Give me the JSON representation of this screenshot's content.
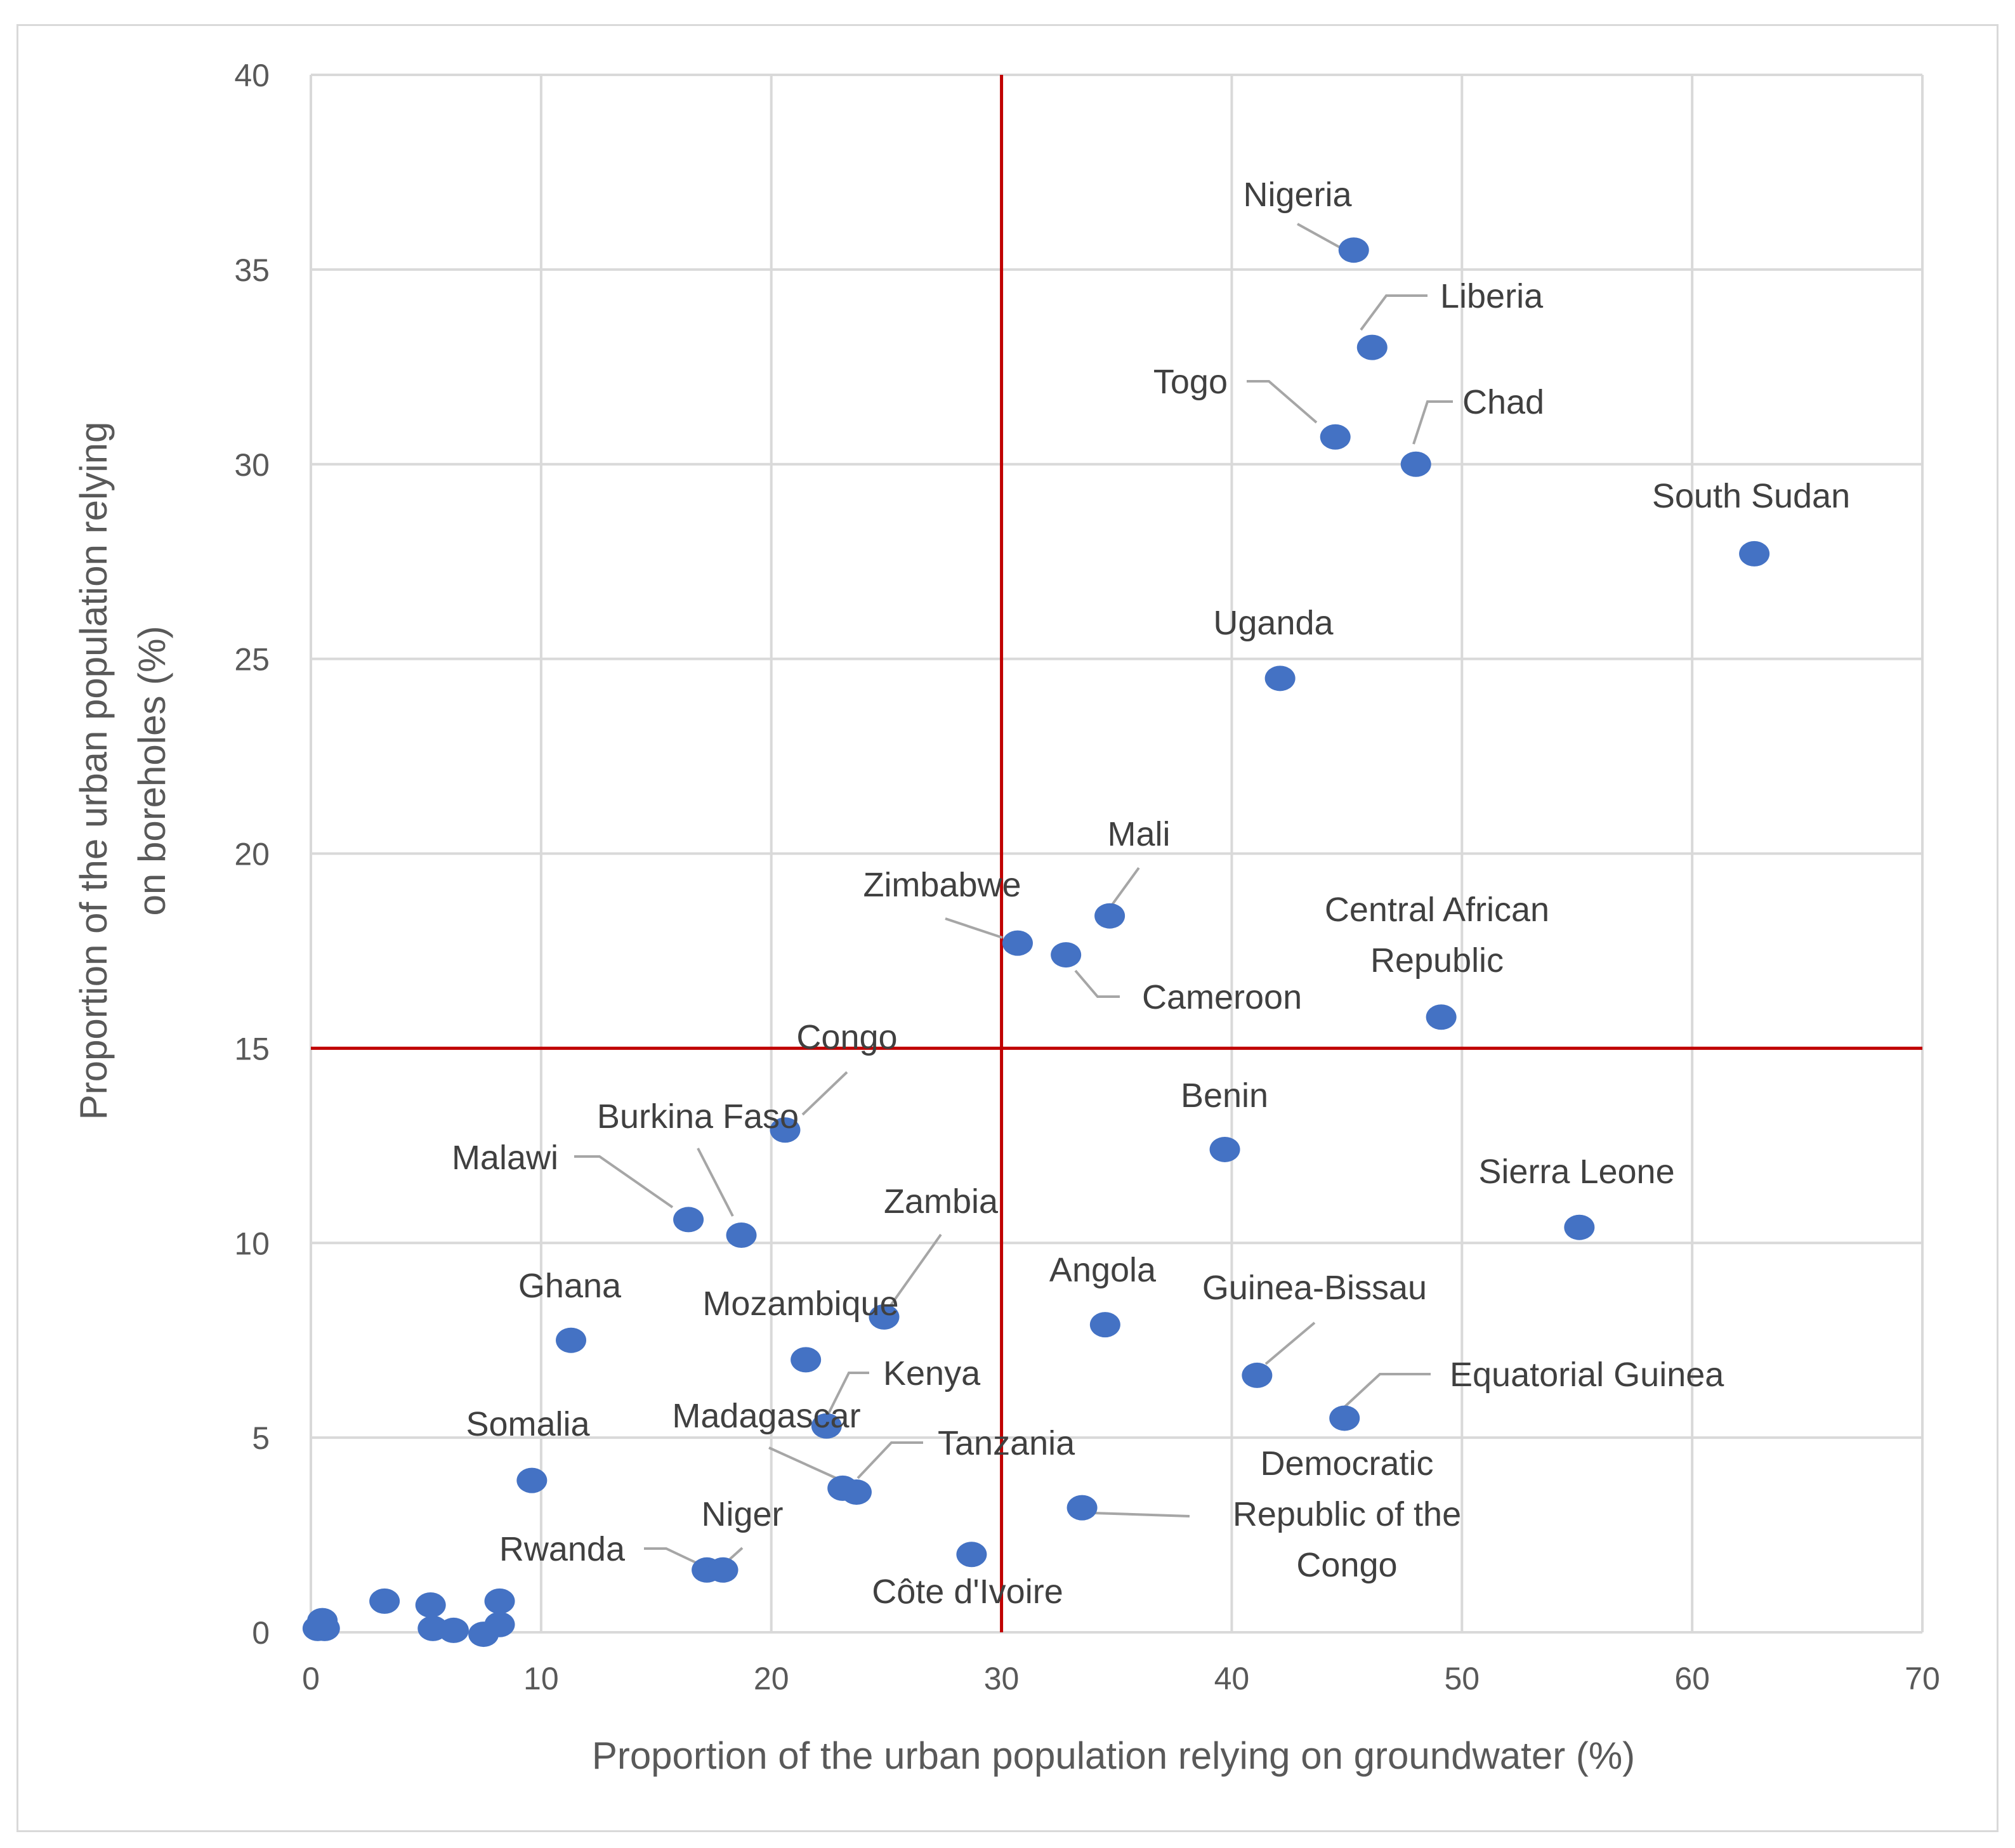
{
  "chart_data": {
    "type": "scatter",
    "title": "",
    "xlabel": "Proportion of the urban population relying on groundwater (%)",
    "ylabel_lines": [
      "Proportion of the urban population relying",
      "on boreholes (%)"
    ],
    "xlim": [
      0,
      70
    ],
    "ylim": [
      0,
      40
    ],
    "x_ticks": [
      0,
      10,
      20,
      30,
      40,
      50,
      60,
      70
    ],
    "y_ticks": [
      0,
      5,
      10,
      15,
      20,
      25,
      30,
      35,
      40
    ],
    "grid": true,
    "reference_lines": {
      "x": 30,
      "y": 15,
      "color": "#c00000"
    },
    "marker_color": "#4472c4",
    "points": [
      {
        "name": "Nigeria",
        "x": 45.3,
        "y": 35.5
      },
      {
        "name": "Liberia",
        "x": 46.1,
        "y": 33.0
      },
      {
        "name": "Togo",
        "x": 44.5,
        "y": 30.7
      },
      {
        "name": "Chad",
        "x": 48.0,
        "y": 30.0
      },
      {
        "name": "South Sudan",
        "x": 62.7,
        "y": 27.7
      },
      {
        "name": "Uganda",
        "x": 42.1,
        "y": 24.5
      },
      {
        "name": "Mali",
        "x": 34.7,
        "y": 18.4
      },
      {
        "name": "Zimbabwe",
        "x": 30.7,
        "y": 17.7
      },
      {
        "name": "Cameroon",
        "x": 32.8,
        "y": 17.4
      },
      {
        "name": "Central African Republic",
        "x": 49.1,
        "y": 15.8
      },
      {
        "name": "Congo",
        "x": 20.6,
        "y": 12.9
      },
      {
        "name": "Benin",
        "x": 39.7,
        "y": 12.4
      },
      {
        "name": "Burkina Faso",
        "x": 18.7,
        "y": 10.2
      },
      {
        "name": "Malawi",
        "x": 16.4,
        "y": 10.6
      },
      {
        "name": "Sierra Leone",
        "x": 55.1,
        "y": 10.4
      },
      {
        "name": "Zambia",
        "x": 24.9,
        "y": 8.1
      },
      {
        "name": "Angola",
        "x": 34.5,
        "y": 7.9
      },
      {
        "name": "Ghana",
        "x": 11.3,
        "y": 7.5
      },
      {
        "name": "Mozambique",
        "x": 21.5,
        "y": 7.0
      },
      {
        "name": "Guinea-Bissau",
        "x": 41.1,
        "y": 6.6
      },
      {
        "name": "Equatorial Guinea",
        "x": 44.9,
        "y": 5.5
      },
      {
        "name": "Kenya",
        "x": 22.4,
        "y": 5.3
      },
      {
        "name": "Madagascar",
        "x": 23.1,
        "y": 3.7
      },
      {
        "name": "Tanzania",
        "x": 23.7,
        "y": 3.6
      },
      {
        "name": "Somalia",
        "x": 9.6,
        "y": 3.9
      },
      {
        "name": "Democratic Republic of the Congo",
        "x": 33.5,
        "y": 3.2
      },
      {
        "name": "Côte d'Ivoire",
        "x": 28.7,
        "y": 2.0
      },
      {
        "name": "Rwanda",
        "x": 17.2,
        "y": 1.6
      },
      {
        "name": "Niger",
        "x": 17.9,
        "y": 1.6
      },
      {
        "name": "",
        "x": 3.2,
        "y": 0.8
      },
      {
        "name": "",
        "x": 5.2,
        "y": 0.7
      },
      {
        "name": "",
        "x": 8.2,
        "y": 0.8
      },
      {
        "name": "",
        "x": 0.5,
        "y": 0.3
      },
      {
        "name": "",
        "x": 0.6,
        "y": 0.1
      },
      {
        "name": "",
        "x": 0.3,
        "y": 0.1
      },
      {
        "name": "",
        "x": 5.3,
        "y": 0.1
      },
      {
        "name": "",
        "x": 6.2,
        "y": 0.05
      },
      {
        "name": "",
        "x": 7.5,
        "y": -0.05
      },
      {
        "name": "",
        "x": 8.2,
        "y": 0.2
      }
    ],
    "labels": [
      {
        "point": "Nigeria",
        "lines": [
          "Nigeria"
        ]
      },
      {
        "point": "Liberia",
        "lines": [
          "Liberia"
        ]
      },
      {
        "point": "Togo",
        "lines": [
          "Togo"
        ]
      },
      {
        "point": "Chad",
        "lines": [
          "Chad"
        ]
      },
      {
        "point": "South Sudan",
        "lines": [
          "South Sudan"
        ]
      },
      {
        "point": "Uganda",
        "lines": [
          "Uganda"
        ]
      },
      {
        "point": "Mali",
        "lines": [
          "Mali"
        ]
      },
      {
        "point": "Zimbabwe",
        "lines": [
          "Zimbabwe"
        ]
      },
      {
        "point": "Cameroon",
        "lines": [
          "Cameroon"
        ]
      },
      {
        "point": "Central African Republic",
        "lines": [
          "Central African",
          "Republic"
        ]
      },
      {
        "point": "Congo",
        "lines": [
          "Congo"
        ]
      },
      {
        "point": "Benin",
        "lines": [
          "Benin"
        ]
      },
      {
        "point": "Burkina Faso",
        "lines": [
          "Burkina Faso"
        ]
      },
      {
        "point": "Malawi",
        "lines": [
          "Malawi"
        ]
      },
      {
        "point": "Sierra Leone",
        "lines": [
          "Sierra Leone"
        ]
      },
      {
        "point": "Zambia",
        "lines": [
          "Zambia"
        ]
      },
      {
        "point": "Angola",
        "lines": [
          "Angola"
        ]
      },
      {
        "point": "Ghana",
        "lines": [
          "Ghana"
        ]
      },
      {
        "point": "Mozambique",
        "lines": [
          "Mozambique"
        ]
      },
      {
        "point": "Guinea-Bissau",
        "lines": [
          "Guinea-Bissau"
        ]
      },
      {
        "point": "Equatorial Guinea",
        "lines": [
          "Equatorial Guinea"
        ]
      },
      {
        "point": "Kenya",
        "lines": [
          "Kenya"
        ]
      },
      {
        "point": "Madagascar",
        "lines": [
          "Madagascar"
        ]
      },
      {
        "point": "Tanzania",
        "lines": [
          "Tanzania"
        ]
      },
      {
        "point": "Somalia",
        "lines": [
          "Somalia"
        ]
      },
      {
        "point": "Democratic Republic of the Congo",
        "lines": [
          "Democratic",
          "Republic of the",
          "Congo"
        ]
      },
      {
        "point": "Côte d'Ivoire",
        "lines": [
          "Côte d'Ivoire"
        ]
      },
      {
        "point": "Rwanda",
        "lines": [
          "Rwanda"
        ]
      },
      {
        "point": "Niger",
        "lines": [
          "Niger"
        ]
      }
    ]
  }
}
